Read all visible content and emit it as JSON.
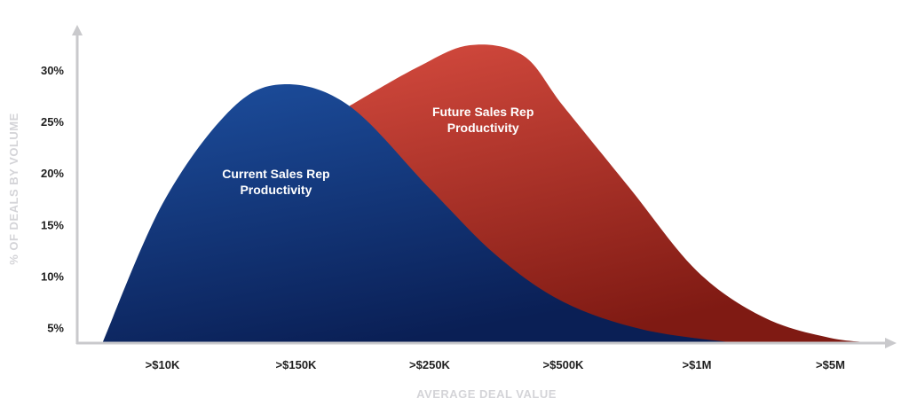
{
  "chart_data": {
    "type": "area",
    "title": "",
    "xlabel": "AVERAGE DEAL VALUE",
    "ylabel": "% OF DEALS BY VOLUME",
    "categories": [
      ">$10K",
      ">$150K",
      ">$250K",
      ">$500K",
      ">$1M",
      ">$5M"
    ],
    "y_ticks": [
      "5%",
      "10%",
      "15%",
      "20%",
      "25%",
      "30%"
    ],
    "y_tick_values": [
      5,
      10,
      15,
      20,
      25,
      30
    ],
    "ylim": [
      3.5,
      33
    ],
    "grid": false,
    "legend": "none",
    "series": [
      {
        "name": "Current Sales Rep Productivity",
        "color": "#1d4f9f",
        "color_dark": "#0a1f55",
        "points": [
          [
            -0.45,
            3.5
          ],
          [
            0.0,
            17.0
          ],
          [
            0.5,
            26.0
          ],
          [
            0.9,
            28.6
          ],
          [
            1.4,
            26.5
          ],
          [
            2.0,
            18.5
          ],
          [
            2.5,
            12.0
          ],
          [
            3.0,
            7.5
          ],
          [
            3.6,
            4.8
          ],
          [
            4.3,
            3.5
          ]
        ]
      },
      {
        "name": "Future Sales Rep Productivity",
        "color": "#d44a3e",
        "color_dark": "#7f1a13",
        "points": [
          [
            1.4,
            26.5
          ],
          [
            1.9,
            30.2
          ],
          [
            2.3,
            32.4
          ],
          [
            2.7,
            31.4
          ],
          [
            3.0,
            26.5
          ],
          [
            3.5,
            18.5
          ],
          [
            4.0,
            10.5
          ],
          [
            4.5,
            6.0
          ],
          [
            5.0,
            4.0
          ],
          [
            5.4,
            3.5
          ]
        ]
      }
    ],
    "annotations": [
      {
        "text": [
          "Current Sales Rep",
          "Productivity"
        ],
        "x": 0.85,
        "y": 19.5,
        "series": 0
      },
      {
        "text": [
          "Future Sales Rep",
          "Productivity"
        ],
        "x": 2.4,
        "y": 25.5,
        "series": 1
      }
    ]
  }
}
